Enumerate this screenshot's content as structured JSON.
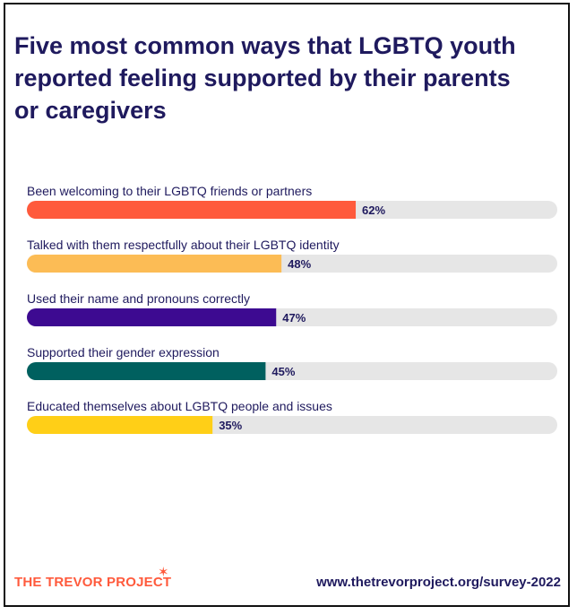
{
  "chart_data": {
    "type": "bar",
    "orientation": "horizontal",
    "title": "Five most common ways that LGBTQ youth reported feeling supported by their parents or caregivers",
    "categories": [
      "Been welcoming to their LGBTQ friends or partners",
      "Talked with them respectfully about their LGBTQ identity",
      "Used their name and pronouns correctly",
      "Supported their gender expression",
      "Educated themselves about LGBTQ people and issues"
    ],
    "values": [
      62,
      48,
      47,
      45,
      35
    ],
    "value_labels": [
      "62%",
      "48%",
      "47%",
      "45%",
      "35%"
    ],
    "colors": [
      "#ff5a3c",
      "#fcbc55",
      "#3d0a91",
      "#00605f",
      "#ffcf17"
    ],
    "track_color": "#e6e6e6",
    "xlim": [
      0,
      100
    ],
    "grid": false,
    "legend": "none"
  },
  "footer": {
    "logo_text": "THE TREVOR PROJECT",
    "url": "www.thetrevorproject.org/survey-2022"
  },
  "colors": {
    "title": "#1f1a5e",
    "brand": "#ff5a3c"
  }
}
